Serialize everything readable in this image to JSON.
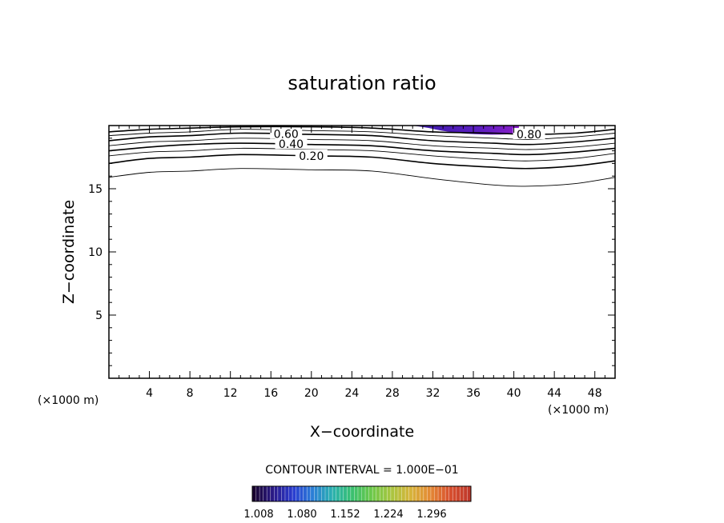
{
  "chart_data": {
    "type": "contour",
    "title": "saturation ratio",
    "xlabel": "X−coordinate",
    "ylabel": "Z−coordinate",
    "x_unit": "(×1000 m)",
    "z_unit": "(×1000 m)",
    "xlim": [
      0,
      50
    ],
    "ylim": [
      0,
      20
    ],
    "x_ticks": [
      4,
      8,
      12,
      16,
      20,
      24,
      28,
      32,
      36,
      40,
      44,
      48
    ],
    "y_ticks": [
      5,
      10,
      15
    ],
    "x_profile": [
      0,
      4,
      8,
      13,
      20,
      26,
      32,
      38,
      41.5,
      46,
      50
    ],
    "contours": [
      {
        "level": 0.1,
        "z": [
          15.9,
          16.3,
          16.4,
          16.6,
          16.5,
          16.4,
          15.8,
          15.3,
          15.2,
          15.4,
          15.9
        ],
        "bold": false,
        "label": ""
      },
      {
        "level": 0.2,
        "z": [
          17.0,
          17.4,
          17.5,
          17.7,
          17.6,
          17.5,
          17.0,
          16.7,
          16.6,
          16.8,
          17.2
        ],
        "bold": true,
        "label": "0.20",
        "label_x": 20.0
      },
      {
        "level": 0.3,
        "z": [
          17.6,
          17.9,
          18.0,
          18.2,
          18.1,
          18.0,
          17.6,
          17.3,
          17.2,
          17.4,
          17.8
        ],
        "bold": false,
        "label": ""
      },
      {
        "level": 0.4,
        "z": [
          18.0,
          18.3,
          18.5,
          18.6,
          18.5,
          18.4,
          18.0,
          17.8,
          17.7,
          17.9,
          18.2
        ],
        "bold": true,
        "label": "0.40",
        "label_x": 18.0
      },
      {
        "level": 0.5,
        "z": [
          18.4,
          18.7,
          18.8,
          19.0,
          18.9,
          18.8,
          18.4,
          18.2,
          18.1,
          18.3,
          18.6
        ],
        "bold": false,
        "label": ""
      },
      {
        "level": 0.6,
        "z": [
          18.8,
          19.1,
          19.2,
          19.4,
          19.3,
          19.2,
          18.8,
          18.6,
          18.5,
          18.7,
          19.0
        ],
        "bold": true,
        "label": "0.60",
        "label_x": 17.5
      },
      {
        "level": 0.7,
        "z": [
          19.2,
          19.4,
          19.5,
          19.7,
          19.6,
          19.5,
          19.2,
          19.0,
          18.9,
          19.1,
          19.4
        ],
        "bold": false,
        "label": ""
      },
      {
        "level": 0.8,
        "z": [
          19.5,
          19.7,
          19.8,
          19.9,
          19.9,
          19.8,
          19.5,
          19.4,
          19.3,
          19.4,
          19.7
        ],
        "bold": true,
        "label": "0.80",
        "label_x": 41.5
      }
    ],
    "shaded_region": {
      "x_start": 30.0,
      "x_end": 40.5,
      "z_bottom": 19.35,
      "z_top": 20.0,
      "value_min": 1.008,
      "value_max": 1.08
    },
    "contour_interval_text": "CONTOUR INTERVAL = 1.000E−01",
    "colorbar": {
      "labels": [
        "1.008",
        "1.080",
        "1.152",
        "1.224",
        "1.296"
      ],
      "colors": [
        "#1a0530",
        "#2a1a8a",
        "#2a3cd0",
        "#2b7fd6",
        "#2ab0b0",
        "#39c070",
        "#6bc84a",
        "#a8c640",
        "#d6b43a",
        "#e48a35",
        "#d8502e",
        "#c0392b"
      ]
    }
  }
}
